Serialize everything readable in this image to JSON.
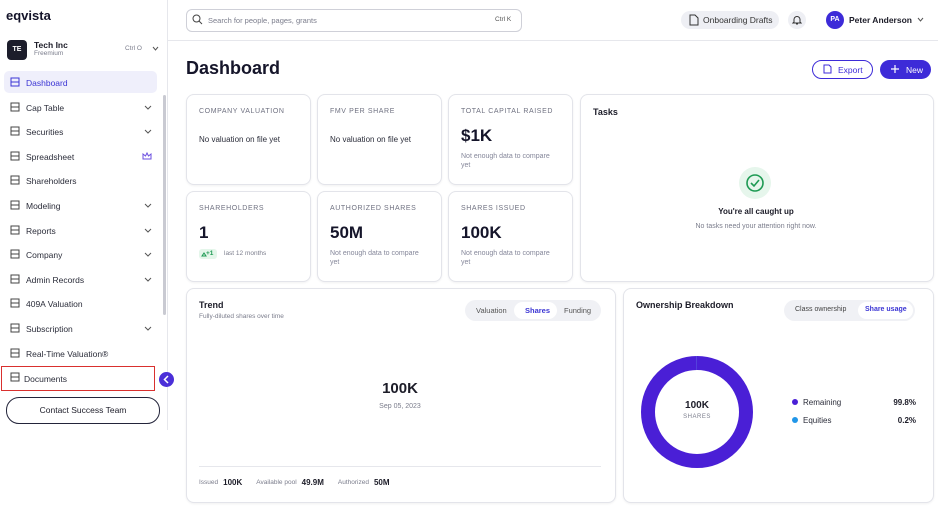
{
  "sidebar": {
    "logo": "eqvista",
    "org": {
      "initials": "TE",
      "name": "Tech Inc",
      "plan": "Freemium",
      "shortcut": "Ctrl O"
    },
    "nav": [
      "Dashboard",
      "Cap Table",
      "Securities",
      "Spreadsheet",
      "Shareholders",
      "Modeling",
      "Reports",
      "Company",
      "Admin Records",
      "409A Valuation",
      "Subscription",
      "Real-Time Valuation®",
      "Documents"
    ],
    "contact": "Contact Success Team"
  },
  "topbar": {
    "search_placeholder": "Search for people, pages, grants",
    "search_shortcut": "Ctrl K",
    "drafts": "Onboarding Drafts",
    "user_initials": "PA",
    "user_name": "Peter Anderson"
  },
  "header": {
    "title": "Dashboard",
    "export": "Export",
    "new": "New"
  },
  "metrics": [
    {
      "label": "COMPANY VALUATION",
      "value": "No valuation on file yet"
    },
    {
      "label": "FMV PER SHARE",
      "value": "No valuation on file yet"
    },
    {
      "label": "TOTAL CAPITAL RAISED",
      "value": "$1K",
      "note": "Not enough data to compare yet"
    },
    {
      "label": "SHAREHOLDERS",
      "value": "1",
      "change": "+1",
      "period": "last 12 months"
    },
    {
      "label": "AUTHORIZED SHARES",
      "value": "50M",
      "note": "Not enough data to compare yet"
    },
    {
      "label": "SHARES ISSUED",
      "value": "100K",
      "note": "Not enough data to compare yet"
    }
  ],
  "tasks": {
    "title": "Tasks",
    "status": "You're all caught up",
    "message": "No tasks need your attention right now."
  },
  "trend": {
    "title": "Trend",
    "subtitle": "Fully-diluted shares over time",
    "tabs": [
      "Valuation",
      "Shares",
      "Funding"
    ],
    "value": "100K",
    "date": "Sep 05, 2023",
    "footer": [
      {
        "label": "Issued",
        "value": "100K"
      },
      {
        "label": "Available pool",
        "value": "49.9M"
      },
      {
        "label": "Authorized",
        "value": "50M"
      }
    ]
  },
  "ownership": {
    "title": "Ownership Breakdown",
    "tabs": [
      "Class ownership",
      "Share usage"
    ],
    "center_value": "100K",
    "center_label": "SHARES",
    "series": [
      {
        "name": "Remaining",
        "value": 99.8,
        "label": "99.8%",
        "color": "#4a1fd6"
      },
      {
        "name": "Equities",
        "value": 0.2,
        "label": "0.2%",
        "color": "#2196e8"
      }
    ]
  }
}
